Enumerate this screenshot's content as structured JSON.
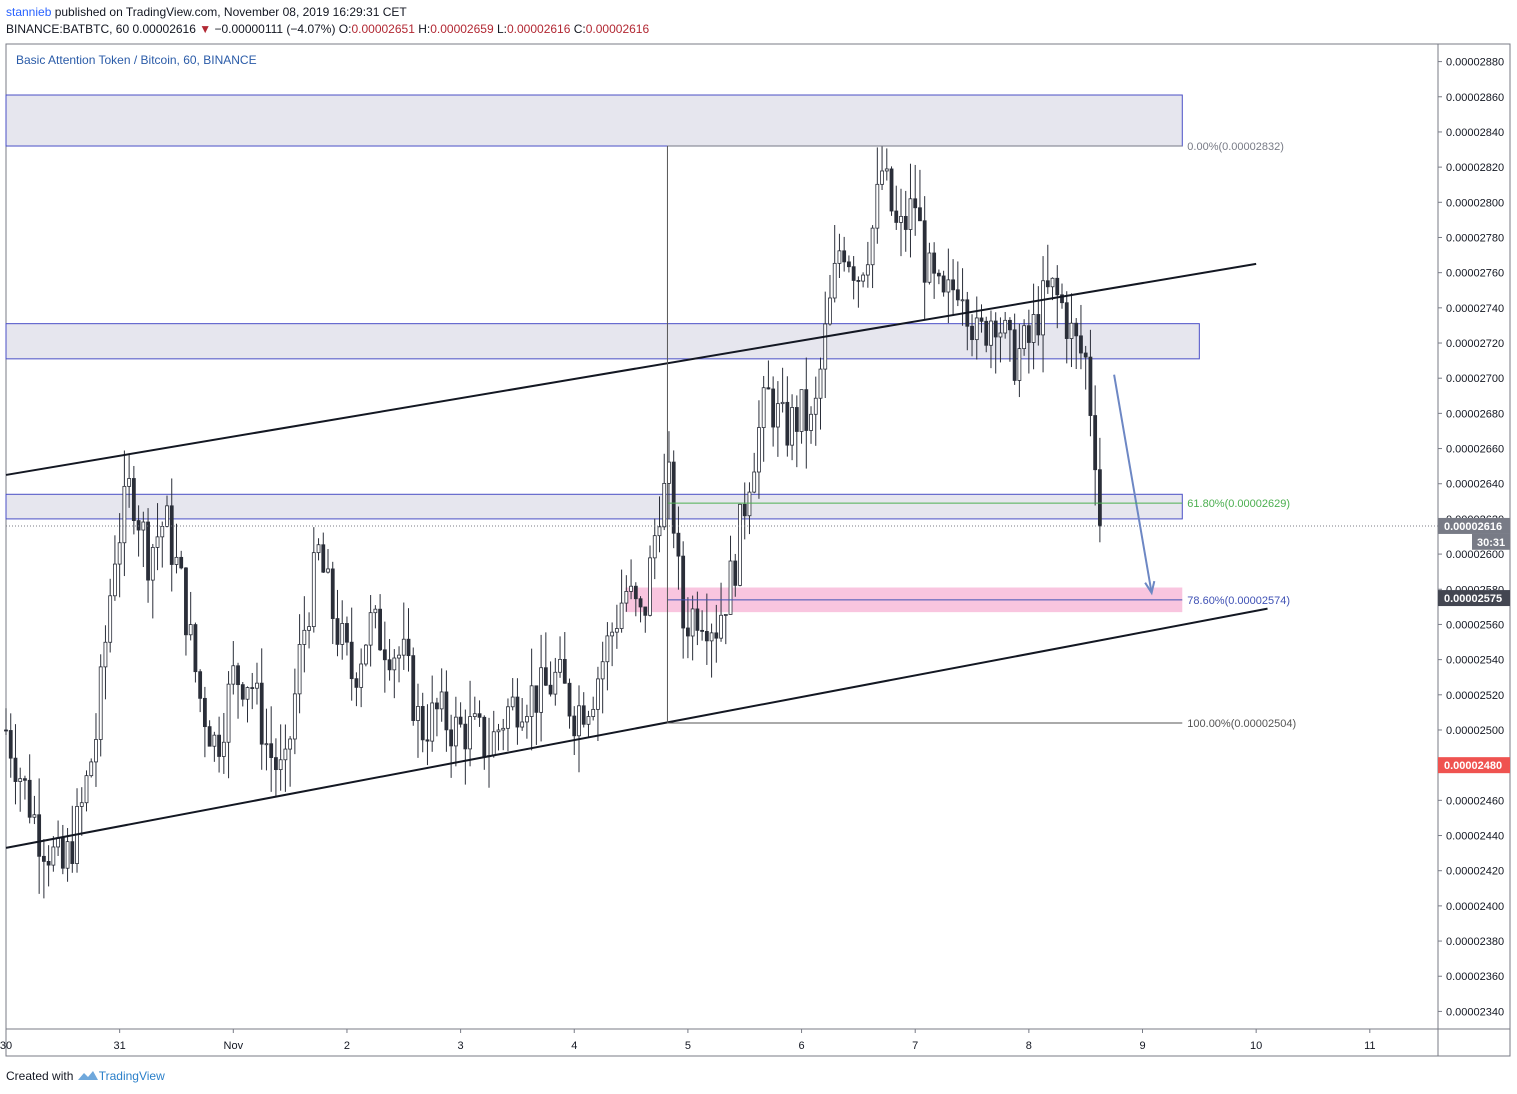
{
  "header": {
    "user": "stannieb",
    "published": " published on TradingView.com, November 08, 2019 16:29:31 CET",
    "symbol": "BINANCE:BATBTC, 60",
    "last": "0.00002616",
    "change_arrow": "▼",
    "change": "−0.00000111 (−4.07%)",
    "o_label": "O:",
    "o_value": "0.00002651",
    "h_label": "H:",
    "h_value": "0.00002659",
    "l_label": "L:",
    "l_value": "0.00002616",
    "c_label": "C:",
    "c_value": "0.00002616"
  },
  "legend": "Basic Attention Token / Bitcoin, 60, BINANCE",
  "footer": {
    "created": "Created with",
    "brand": "TradingView",
    "logo_icon": "tradingview-logo-icon"
  },
  "chart_data": {
    "type": "candlestick",
    "timeframe": "60",
    "y_axis": {
      "range": [
        2.33e-05,
        2.89e-05
      ],
      "ticks": [
        "0.00002880",
        "0.00002860",
        "0.00002840",
        "0.00002820",
        "0.00002800",
        "0.00002780",
        "0.00002760",
        "0.00002740",
        "0.00002720",
        "0.00002700",
        "0.00002680",
        "0.00002660",
        "0.00002640",
        "0.00002620",
        "0.00002600",
        "0.00002580",
        "0.00002560",
        "0.00002540",
        "0.00002520",
        "0.00002500",
        "0.00002480",
        "0.00002460",
        "0.00002440",
        "0.00002420",
        "0.00002400",
        "0.00002380",
        "0.00002360",
        "0.00002340"
      ]
    },
    "x_axis": {
      "range_days": [
        30,
        42.6
      ],
      "ticks": [
        {
          "label": "30",
          "day": 30
        },
        {
          "label": "31",
          "day": 31
        },
        {
          "label": "Nov",
          "day": 32
        },
        {
          "label": "2",
          "day": 33
        },
        {
          "label": "3",
          "day": 34
        },
        {
          "label": "4",
          "day": 35
        },
        {
          "label": "5",
          "day": 36
        },
        {
          "label": "6",
          "day": 37
        },
        {
          "label": "7",
          "day": 38
        },
        {
          "label": "8",
          "day": 39
        },
        {
          "label": "9",
          "day": 40
        },
        {
          "label": "10",
          "day": 41
        },
        {
          "label": "11",
          "day": 42
        }
      ]
    },
    "price_series": [
      {
        "t": 30.0,
        "p": 2.5e-05
      },
      {
        "t": 30.15,
        "p": 2.47e-05
      },
      {
        "t": 30.3,
        "p": 2.44e-05
      },
      {
        "t": 30.5,
        "p": 2.42e-05
      },
      {
        "t": 30.65,
        "p": 2.45e-05
      },
      {
        "t": 30.8,
        "p": 2.5e-05
      },
      {
        "t": 30.95,
        "p": 2.6e-05
      },
      {
        "t": 31.1,
        "p": 2.64e-05
      },
      {
        "t": 31.25,
        "p": 2.6e-05
      },
      {
        "t": 31.4,
        "p": 2.62e-05
      },
      {
        "t": 31.55,
        "p": 2.58e-05
      },
      {
        "t": 31.7,
        "p": 2.52e-05
      },
      {
        "t": 31.85,
        "p": 2.49e-05
      },
      {
        "t": 32.0,
        "p": 2.53e-05
      },
      {
        "t": 32.15,
        "p": 2.53e-05
      },
      {
        "t": 32.3,
        "p": 2.49e-05
      },
      {
        "t": 32.45,
        "p": 2.47e-05
      },
      {
        "t": 32.6,
        "p": 2.55e-05
      },
      {
        "t": 32.75,
        "p": 2.6e-05
      },
      {
        "t": 32.9,
        "p": 2.56e-05
      },
      {
        "t": 33.05,
        "p": 2.53e-05
      },
      {
        "t": 33.2,
        "p": 2.56e-05
      },
      {
        "t": 33.35,
        "p": 2.55e-05
      },
      {
        "t": 33.5,
        "p": 2.54e-05
      },
      {
        "t": 33.65,
        "p": 2.5e-05
      },
      {
        "t": 33.8,
        "p": 2.51e-05
      },
      {
        "t": 33.95,
        "p": 2.5e-05
      },
      {
        "t": 34.1,
        "p": 2.5e-05
      },
      {
        "t": 34.25,
        "p": 2.49e-05
      },
      {
        "t": 34.4,
        "p": 2.51e-05
      },
      {
        "t": 34.55,
        "p": 2.52e-05
      },
      {
        "t": 34.7,
        "p": 2.52e-05
      },
      {
        "t": 34.85,
        "p": 2.53e-05
      },
      {
        "t": 35.0,
        "p": 2.51e-05
      },
      {
        "t": 35.15,
        "p": 2.52e-05
      },
      {
        "t": 35.3,
        "p": 2.55e-05
      },
      {
        "t": 35.45,
        "p": 2.58e-05
      },
      {
        "t": 35.6,
        "p": 2.56e-05
      },
      {
        "t": 35.75,
        "p": 2.63e-05
      },
      {
        "t": 35.85,
        "p": 2.64e-05
      },
      {
        "t": 35.95,
        "p": 2.56e-05
      },
      {
        "t": 36.1,
        "p": 2.57e-05
      },
      {
        "t": 36.25,
        "p": 2.56e-05
      },
      {
        "t": 36.4,
        "p": 2.59e-05
      },
      {
        "t": 36.55,
        "p": 2.65e-05
      },
      {
        "t": 36.7,
        "p": 2.69e-05
      },
      {
        "t": 36.85,
        "p": 2.67e-05
      },
      {
        "t": 37.0,
        "p": 2.68e-05
      },
      {
        "t": 37.1,
        "p": 2.67e-05
      },
      {
        "t": 37.2,
        "p": 2.72e-05
      },
      {
        "t": 37.35,
        "p": 2.78e-05
      },
      {
        "t": 37.5,
        "p": 2.76e-05
      },
      {
        "t": 37.65,
        "p": 2.79e-05
      },
      {
        "t": 37.7,
        "p": 2.82e-05
      },
      {
        "t": 37.85,
        "p": 2.78e-05
      },
      {
        "t": 38.0,
        "p": 2.8e-05
      },
      {
        "t": 38.1,
        "p": 2.76e-05
      },
      {
        "t": 38.25,
        "p": 2.74e-05
      },
      {
        "t": 38.4,
        "p": 2.76e-05
      },
      {
        "t": 38.55,
        "p": 2.72e-05
      },
      {
        "t": 38.7,
        "p": 2.74e-05
      },
      {
        "t": 38.85,
        "p": 2.71e-05
      },
      {
        "t": 39.0,
        "p": 2.72e-05
      },
      {
        "t": 39.1,
        "p": 2.74e-05
      },
      {
        "t": 39.2,
        "p": 2.75e-05
      },
      {
        "t": 39.3,
        "p": 2.74e-05
      },
      {
        "t": 39.4,
        "p": 2.72e-05
      },
      {
        "t": 39.5,
        "p": 2.71e-05
      },
      {
        "t": 39.55,
        "p": 2.68e-05
      },
      {
        "t": 39.6,
        "p": 2.65e-05
      },
      {
        "t": 39.65,
        "p": 2.616e-05
      }
    ],
    "trendlines": [
      {
        "from": {
          "t": 30.0,
          "p": 2.645e-05
        },
        "to": {
          "t": 41.0,
          "p": 2.765e-05
        }
      },
      {
        "from": {
          "t": 30.0,
          "p": 2.433e-05
        },
        "to": {
          "t": 41.1,
          "p": 2.569e-05
        }
      }
    ],
    "zones": [
      {
        "t1": 30.0,
        "t2": 40.35,
        "p1": 2.832e-05,
        "p2": 2.861e-05,
        "style": "gray"
      },
      {
        "t1": 30.0,
        "t2": 40.5,
        "p1": 2.711e-05,
        "p2": 2.731e-05,
        "style": "gray"
      },
      {
        "t1": 30.0,
        "t2": 40.35,
        "p1": 2.62e-05,
        "p2": 2.634e-05,
        "style": "gray"
      },
      {
        "t1": 35.45,
        "t2": 40.35,
        "p1": 2.567e-05,
        "p2": 2.581e-05,
        "style": "pink"
      }
    ],
    "fibonacci": [
      {
        "label": "0.00%(0.00002832)",
        "price": 2.832e-05,
        "color": "#787b86"
      },
      {
        "label": "61.80%(0.00002629)",
        "price": 2.629e-05,
        "color": "#4caf50"
      },
      {
        "label": "78.60%(0.00002574)",
        "price": 2.574e-05,
        "color": "#3f51b5"
      },
      {
        "label": "100.00%(0.00002504)",
        "price": 2.504e-05,
        "color": "#555555"
      }
    ],
    "projection_arrow": {
      "from": {
        "t": 39.75,
        "p": 2.702e-05
      },
      "to": {
        "t": 40.08,
        "p": 2.578e-05
      }
    },
    "price_labels": [
      {
        "text": "0.00002616",
        "price": 2.616e-05,
        "bg": "#787b86"
      },
      {
        "text": "30:31",
        "price": 2.607e-05,
        "bg": "#787b86"
      },
      {
        "text": "0.00002575",
        "price": 2.575e-05,
        "bg": "#434651"
      },
      {
        "text": "0.00002480",
        "price": 2.48e-05,
        "bg": "#ef5350"
      }
    ]
  }
}
